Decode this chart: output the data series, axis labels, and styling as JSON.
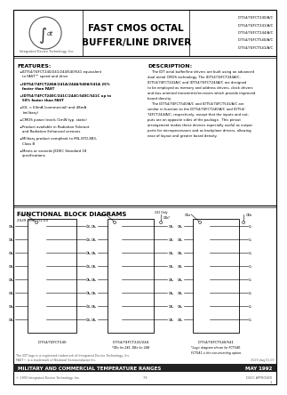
{
  "title_main1": "FAST CMOS OCTAL",
  "title_main2": "BUFFER/LINE DRIVER",
  "part_numbers": [
    "IDT54/74FCT240/A/C",
    "IDT54/74FCT241/A/C",
    "IDT54/74FCT244/A/C",
    "IDT54/74FCT540/A/C",
    "IDT54/74FCT541/A/C"
  ],
  "features_title": "FEATURES:",
  "features": [
    [
      "normal",
      "IDT54/74FCT240/241/244/540/541 equivalent to FAST™ speed and drive"
    ],
    [
      "bold",
      "IDT54/74FCT240A/241A/244A/540A/541A 25% faster than FAST"
    ],
    [
      "bold",
      "IDT54/74FCT240C/241C/244C/540C/541C up to 50% faster than FAST"
    ],
    [
      "normal",
      "IOL = 64mA (commercial) and 48mA (military)"
    ],
    [
      "normal",
      "CMOS power levels (1mW typ. static)"
    ],
    [
      "normal",
      "Product available in Radiation Tolerant and Radiation Enhanced versions"
    ],
    [
      "normal",
      "Military product compliant to MIL-STD-883, Class B"
    ],
    [
      "normal",
      "Meets or exceeds JEDEC Standard 18 specifications"
    ]
  ],
  "description_title": "DESCRIPTION:",
  "desc_lines": [
    "    The IDT octal buffer/line drivers are built using an advanced",
    "dual metal CMOS technology. The IDT54/74FCT240A/C,",
    "IDT54/74FCT241A/C and IDT54/74FCT244A/C are designed",
    "to be employed as memory and address drivers, clock drivers",
    "and bus-oriented transmitter/receivers which provide improved",
    "board density.",
    "    The IDT54/74FCT540/A/C and IDT54/74FCT541/A/C are",
    "similar in function to the IDT54/74FCT240/A/C and IDT54/",
    "74FCT244/A/C, respectively, except that the inputs and out-",
    "puts are on opposite sides of the package.  This pinout",
    "arrangement makes these devices especially useful as output",
    "ports for microprocessors and as backplane drivers, allowing",
    "ease of layout and greater board density."
  ],
  "functional_title": "FUNCTIONAL BLOCK DIAGRAMS",
  "functional_subtitle": "2529 cmr* 01-03",
  "d1_label": "IDT54/74FCT240",
  "d2_label": "IDT54/74FCT241/244",
  "d2_note": "*OEs for 241, DBs for 244",
  "d3_label": "IDT54/74FCT540/541",
  "d3_note1": "*Logic diagram shown for FCT540.",
  "d3_note2": "FCT541 is the non-inverting option.",
  "d3_ref": "2529 dwg 01-03",
  "input_labels": [
    "DA₀",
    "DB₀",
    "DA₁",
    "DB₁",
    "DA₂",
    "DB₂",
    "DA₃",
    "DB₃"
  ],
  "d1_out_labels": [
    "ŌB₀",
    "ŌB₁",
    "ŌA₁",
    "ŌB₂",
    "ŌA₂",
    "ŌA₃",
    "ŌB₃",
    "ŌB₄"
  ],
  "d2_out_labels": [
    "DB₀",
    "DB₁",
    "DA₁",
    "DB₂",
    "DA₂",
    "DA₃",
    "DB₃",
    "DB₄"
  ],
  "d3_out_labels": [
    "O₀",
    "O₁",
    "O₂",
    "O₃",
    "O₄",
    "O₅",
    "O₆",
    "O₇"
  ],
  "footer_line1": "The IDT logo is a registered trademark of Integrated Device Technology, Inc.",
  "footer_line2": "FAST™ is a trademark of National Semiconductor Inc.",
  "footer_bar": "MILITARY AND COMMERCIAL TEMPERATURE RANGES",
  "footer_date": "MAY 1992",
  "footer_company": "© 1993 Integrated Device Technology, Inc.",
  "footer_page": "7-9",
  "footer_doc": "DSCC APPROVED\n1",
  "bg_color": "#ffffff",
  "text_color": "#000000"
}
